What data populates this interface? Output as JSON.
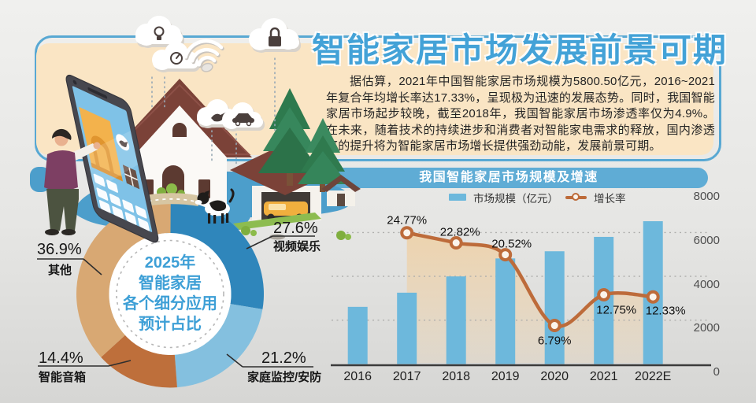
{
  "theme": {
    "accent_blue": "#43A2D7",
    "panel_cream": "#FAE5C4",
    "frame_blue": "#58A8D3",
    "pill_blue": "#5FACD5",
    "bar_blue": "#6DB8DC",
    "line_orange": "#BD6B3A"
  },
  "header": {
    "title": "智能家居市场发展前景可期",
    "intro": "据估算，2021年中国智能家居市场规模为5800.50亿元，2016~2021年复合年均增长率达17.33%，呈现极为迅速的发展态势。同时，我国智能家居市场起步较晚，截至2018年，我国智能家居市场渗透率仅为4.9%。在未来，随着技术的持续进步和消费者对智能家电需求的释放，国内渗透率的提升将为智能家居市场增长提供强劲动能，发展前景可期。"
  },
  "illustration": {
    "cloud_icons": [
      "light-bulb-icon",
      "thermostat-icon",
      "lock-icon",
      "bird-icon",
      "car-icon",
      "wifi-icon"
    ],
    "scene_items": [
      "isometric-house",
      "garage-with-car",
      "pine-trees",
      "smartphone-app",
      "person",
      "dog",
      "bushes",
      "shed"
    ]
  },
  "chart_data": [
    {
      "type": "pie",
      "donut": true,
      "title": "2025年智能家居各个细分应用预计占比",
      "center_label_lines": [
        "2025年",
        "智能家居",
        "各个细分应用",
        "预计占比"
      ],
      "labels": [
        "视频娱乐",
        "家庭监控/安防",
        "智能音箱",
        "其他"
      ],
      "values": [
        27.6,
        21.2,
        14.4,
        36.9
      ],
      "value_labels": [
        "27.6%",
        "21.2%",
        "14.4%",
        "36.9%"
      ],
      "colors": [
        "#2F86BB",
        "#84C0DF",
        "#BE6F3B",
        "#D8A873"
      ],
      "start_angle_deg": 0,
      "direction": "clockwise"
    },
    {
      "type": "bar+line",
      "title": "我国智能家居市场规模及增速",
      "categories": [
        "2016",
        "2017",
        "2018",
        "2019",
        "2020",
        "2021",
        "2022E"
      ],
      "series": [
        {
          "name": "市场规模（亿元）",
          "type": "bar",
          "color": "#6DB8DC",
          "values": [
            2608.5,
            3254.7,
            3997.3,
            4817.6,
            5144.7,
            5800.5,
            6515.7
          ]
        },
        {
          "name": "增长率",
          "type": "line",
          "color": "#BD6B3A",
          "values": [
            null,
            24.77,
            22.82,
            20.52,
            6.79,
            12.75,
            12.33
          ],
          "point_labels": [
            null,
            "24.77%",
            "22.82%",
            "20.52%",
            "6.79%",
            "12.75%",
            "12.33%"
          ]
        }
      ],
      "y_axis": {
        "side": "right",
        "ticks": [
          8000,
          6000,
          4000,
          2000,
          0
        ],
        "range": [
          0,
          8000
        ]
      },
      "grid": "dotted-horizontal",
      "legend_position": "top"
    }
  ]
}
